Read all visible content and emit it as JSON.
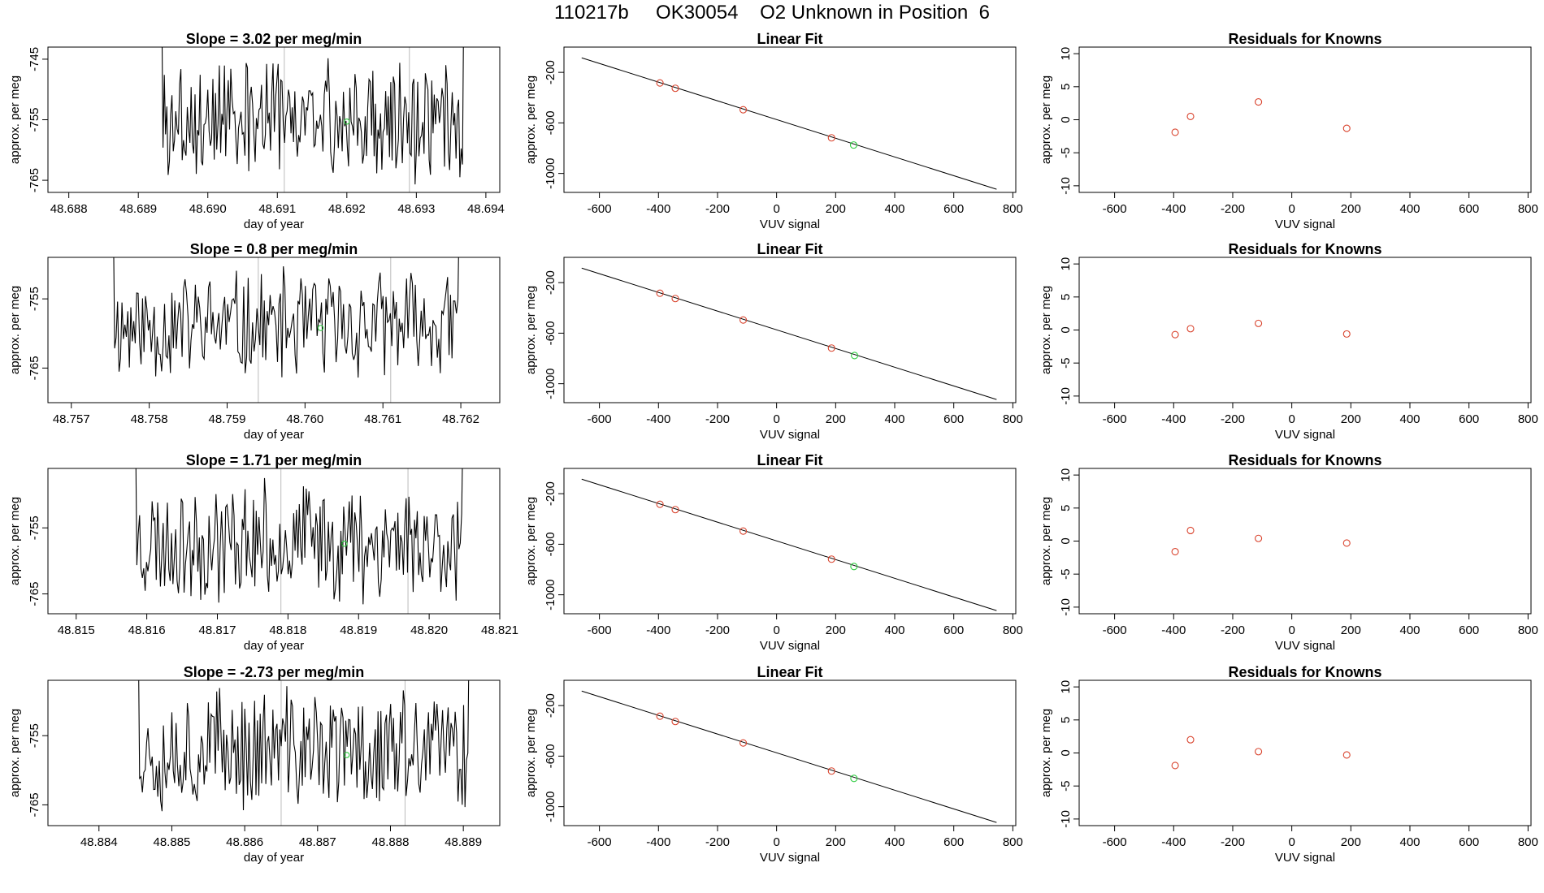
{
  "page_title": "110217b     OK30054    O2 Unknown in Position  6",
  "colors": {
    "trace": "#000000",
    "vertical_marker": "#bbbbbb",
    "known_point": "#d9442e",
    "unknown_point": "#2ecc40",
    "axis": "#000000"
  },
  "chart_data": [
    {
      "type": "line",
      "row": 0,
      "panel": "time",
      "title": "Slope =  3.02  per meg/min",
      "xlabel": "day of year",
      "ylabel": "approx. per meg",
      "xlim": [
        48.6877,
        48.6942
      ],
      "ylim": [
        -767.0,
        -743.0
      ],
      "xticks": [
        48.688,
        48.689,
        48.69,
        48.691,
        48.692,
        48.693,
        48.694
      ],
      "xtick_labels": [
        "48.688",
        "48.689",
        "48.690",
        "48.691",
        "48.692",
        "48.693",
        "48.694"
      ],
      "yticks": [
        -765,
        -755,
        -745
      ],
      "ytick_labels": [
        "-765",
        "-755",
        "-745"
      ],
      "trace_start": 48.6893,
      "trace_end": 48.6937,
      "trace_center": -755,
      "trace_amplitude": 11,
      "seed": 3,
      "vlines": [
        48.6911,
        48.6929
      ],
      "unknown_point": {
        "x": 48.692,
        "y": -755.3
      }
    },
    {
      "type": "line",
      "row": 0,
      "panel": "fit",
      "title": "Linear Fit",
      "xlabel": "VUV signal",
      "ylabel": "approx. per meg",
      "xlim": [
        -720,
        810
      ],
      "ylim": [
        -1150,
        0
      ],
      "xticks": [
        -600,
        -400,
        -200,
        0,
        200,
        400,
        600,
        800
      ],
      "xtick_labels": [
        "-600",
        "-400",
        "-200",
        "0",
        "200",
        "400",
        "600",
        "800"
      ],
      "yticks": [
        -1000,
        -600,
        -200
      ],
      "ytick_labels": [
        "-1000",
        "-600",
        "-200"
      ],
      "line": {
        "x0": -660,
        "y0": -85,
        "x1": 745,
        "y1": -1125
      },
      "known_points": [
        {
          "x": -395,
          "y": -284
        },
        {
          "x": -343,
          "y": -326
        },
        {
          "x": -113,
          "y": -496
        },
        {
          "x": 186,
          "y": -718
        }
      ],
      "unknown_point": {
        "x": 261,
        "y": -775
      }
    },
    {
      "type": "scatter",
      "row": 0,
      "panel": "residuals",
      "title": "Residuals for Knowns",
      "xlabel": "VUV signal",
      "ylabel": "approx. per meg",
      "xlim": [
        -720,
        810
      ],
      "ylim": [
        -11,
        11
      ],
      "xticks": [
        -600,
        -400,
        -200,
        0,
        200,
        400,
        600,
        800
      ],
      "xtick_labels": [
        "-600",
        "-400",
        "-200",
        "0",
        "200",
        "400",
        "600",
        "800"
      ],
      "yticks": [
        -10,
        -5,
        0,
        5,
        10
      ],
      "ytick_labels": [
        "-10",
        "-5",
        "0",
        "5",
        "10"
      ],
      "points": [
        {
          "x": -395,
          "y": -1.9
        },
        {
          "x": -343,
          "y": 0.5
        },
        {
          "x": -113,
          "y": 2.7
        },
        {
          "x": 186,
          "y": -1.3
        }
      ]
    },
    {
      "type": "line",
      "row": 1,
      "panel": "time",
      "title": "Slope =  0.8  per meg/min",
      "xlabel": "day of year",
      "ylabel": "approx. per meg",
      "xlim": [
        48.7567,
        48.7625
      ],
      "ylim": [
        -770.0,
        -749.0
      ],
      "xticks": [
        48.757,
        48.758,
        48.759,
        48.76,
        48.761,
        48.762
      ],
      "xtick_labels": [
        "48.757",
        "48.758",
        "48.759",
        "48.760",
        "48.761",
        "48.762"
      ],
      "yticks": [
        -765,
        -755
      ],
      "ytick_labels": [
        "-765",
        "-755"
      ],
      "trace_start": 48.7575,
      "trace_end": 48.762,
      "trace_center": -759,
      "trace_amplitude": 9,
      "seed": 11,
      "vlines": [
        48.7594,
        48.7611
      ],
      "unknown_point": {
        "x": 48.7602,
        "y": -759.2
      }
    },
    {
      "type": "line",
      "row": 1,
      "panel": "fit",
      "title": "Linear Fit",
      "xlabel": "VUV signal",
      "ylabel": "approx. per meg",
      "xlim": [
        -720,
        810
      ],
      "ylim": [
        -1150,
        0
      ],
      "xticks": [
        -600,
        -400,
        -200,
        0,
        200,
        400,
        600,
        800
      ],
      "xtick_labels": [
        "-600",
        "-400",
        "-200",
        "0",
        "200",
        "400",
        "600",
        "800"
      ],
      "yticks": [
        -1000,
        -600,
        -200
      ],
      "ytick_labels": [
        "-1000",
        "-600",
        "-200"
      ],
      "line": {
        "x0": -660,
        "y0": -85,
        "x1": 745,
        "y1": -1125
      },
      "known_points": [
        {
          "x": -395,
          "y": -284
        },
        {
          "x": -343,
          "y": -326
        },
        {
          "x": -113,
          "y": -496
        },
        {
          "x": 186,
          "y": -718
        }
      ],
      "unknown_point": {
        "x": 264,
        "y": -777
      }
    },
    {
      "type": "scatter",
      "row": 1,
      "panel": "residuals",
      "title": "Residuals for Knowns",
      "xlabel": "VUV signal",
      "ylabel": "approx. per meg",
      "xlim": [
        -720,
        810
      ],
      "ylim": [
        -11,
        11
      ],
      "xticks": [
        -600,
        -400,
        -200,
        0,
        200,
        400,
        600,
        800
      ],
      "xtick_labels": [
        "-600",
        "-400",
        "-200",
        "0",
        "200",
        "400",
        "600",
        "800"
      ],
      "yticks": [
        -10,
        -5,
        0,
        5,
        10
      ],
      "ytick_labels": [
        "-10",
        "-5",
        "0",
        "5",
        "10"
      ],
      "points": [
        {
          "x": -395,
          "y": -0.7
        },
        {
          "x": -343,
          "y": 0.2
        },
        {
          "x": -113,
          "y": 1.0
        },
        {
          "x": 186,
          "y": -0.6
        }
      ]
    },
    {
      "type": "line",
      "row": 2,
      "panel": "time",
      "title": "Slope =  1.71  per meg/min",
      "xlabel": "day of year",
      "ylabel": "approx. per meg",
      "xlim": [
        48.8146,
        48.821
      ],
      "ylim": [
        -768.0,
        -746.0
      ],
      "xticks": [
        48.815,
        48.816,
        48.817,
        48.818,
        48.819,
        48.82,
        48.821
      ],
      "xtick_labels": [
        "48.815",
        "48.816",
        "48.817",
        "48.818",
        "48.819",
        "48.820",
        "48.821"
      ],
      "yticks": [
        -765,
        -755
      ],
      "ytick_labels": [
        "-765",
        "-755"
      ],
      "trace_start": 48.8158,
      "trace_end": 48.8205,
      "trace_center": -757,
      "trace_amplitude": 10,
      "seed": 23,
      "vlines": [
        48.8179,
        48.8197
      ],
      "unknown_point": {
        "x": 48.8188,
        "y": -757.4
      }
    },
    {
      "type": "line",
      "row": 2,
      "panel": "fit",
      "title": "Linear Fit",
      "xlabel": "VUV signal",
      "ylabel": "approx. per meg",
      "xlim": [
        -720,
        810
      ],
      "ylim": [
        -1150,
        0
      ],
      "xticks": [
        -600,
        -400,
        -200,
        0,
        200,
        400,
        600,
        800
      ],
      "xtick_labels": [
        "-600",
        "-400",
        "-200",
        "0",
        "200",
        "400",
        "600",
        "800"
      ],
      "yticks": [
        -1000,
        -600,
        -200
      ],
      "ytick_labels": [
        "-1000",
        "-600",
        "-200"
      ],
      "line": {
        "x0": -660,
        "y0": -85,
        "x1": 745,
        "y1": -1125
      },
      "known_points": [
        {
          "x": -395,
          "y": -284
        },
        {
          "x": -343,
          "y": -326
        },
        {
          "x": -113,
          "y": -496
        },
        {
          "x": 186,
          "y": -718
        }
      ],
      "unknown_point": {
        "x": 262,
        "y": -776
      }
    },
    {
      "type": "scatter",
      "row": 2,
      "panel": "residuals",
      "title": "Residuals for Knowns",
      "xlabel": "VUV signal",
      "ylabel": "approx. per meg",
      "xlim": [
        -720,
        810
      ],
      "ylim": [
        -11,
        11
      ],
      "xticks": [
        -600,
        -400,
        -200,
        0,
        200,
        400,
        600,
        800
      ],
      "xtick_labels": [
        "-600",
        "-400",
        "-200",
        "0",
        "200",
        "400",
        "600",
        "800"
      ],
      "yticks": [
        -10,
        -5,
        0,
        5,
        10
      ],
      "ytick_labels": [
        "-10",
        "-5",
        "0",
        "5",
        "10"
      ],
      "points": [
        {
          "x": -395,
          "y": -1.6
        },
        {
          "x": -343,
          "y": 1.6
        },
        {
          "x": -113,
          "y": 0.4
        },
        {
          "x": 186,
          "y": -0.3
        }
      ]
    },
    {
      "type": "line",
      "row": 3,
      "panel": "time",
      "title": "Slope =  -2.73  per meg/min",
      "xlabel": "day of year",
      "ylabel": "approx. per meg",
      "xlim": [
        48.8833,
        48.8895
      ],
      "ylim": [
        -768.0,
        -747.0
      ],
      "xticks": [
        48.884,
        48.885,
        48.886,
        48.887,
        48.888,
        48.889
      ],
      "xtick_labels": [
        "48.884",
        "48.885",
        "48.886",
        "48.887",
        "48.888",
        "48.889"
      ],
      "yticks": [
        -765,
        -755
      ],
      "ytick_labels": [
        "-765",
        "-755"
      ],
      "trace_start": 48.8845,
      "trace_end": 48.8891,
      "trace_center": -757,
      "trace_amplitude": 10,
      "seed": 37,
      "vlines": [
        48.8865,
        48.8882
      ],
      "unknown_point": {
        "x": 48.8874,
        "y": -757.8
      }
    },
    {
      "type": "line",
      "row": 3,
      "panel": "fit",
      "title": "Linear Fit",
      "xlabel": "VUV signal",
      "ylabel": "approx. per meg",
      "xlim": [
        -720,
        810
      ],
      "ylim": [
        -1150,
        0
      ],
      "xticks": [
        -600,
        -400,
        -200,
        0,
        200,
        400,
        600,
        800
      ],
      "xtick_labels": [
        "-600",
        "-400",
        "-200",
        "0",
        "200",
        "400",
        "600",
        "800"
      ],
      "yticks": [
        -1000,
        -600,
        -200
      ],
      "ytick_labels": [
        "-1000",
        "-600",
        "-200"
      ],
      "line": {
        "x0": -660,
        "y0": -85,
        "x1": 745,
        "y1": -1125
      },
      "known_points": [
        {
          "x": -395,
          "y": -284
        },
        {
          "x": -343,
          "y": -326
        },
        {
          "x": -113,
          "y": -496
        },
        {
          "x": 186,
          "y": -718
        }
      ],
      "unknown_point": {
        "x": 262,
        "y": -776
      }
    },
    {
      "type": "scatter",
      "row": 3,
      "panel": "residuals",
      "title": "Residuals for Knowns",
      "xlabel": "VUV signal",
      "ylabel": "approx. per meg",
      "xlim": [
        -720,
        810
      ],
      "ylim": [
        -11,
        11
      ],
      "xticks": [
        -600,
        -400,
        -200,
        0,
        200,
        400,
        600,
        800
      ],
      "xtick_labels": [
        "-600",
        "-400",
        "-200",
        "0",
        "200",
        "400",
        "600",
        "800"
      ],
      "yticks": [
        -10,
        -5,
        0,
        5,
        10
      ],
      "ytick_labels": [
        "-10",
        "-5",
        "0",
        "5",
        "10"
      ],
      "points": [
        {
          "x": -395,
          "y": -1.9
        },
        {
          "x": -343,
          "y": 2.0
        },
        {
          "x": -113,
          "y": 0.2
        },
        {
          "x": 186,
          "y": -0.3
        }
      ]
    }
  ]
}
